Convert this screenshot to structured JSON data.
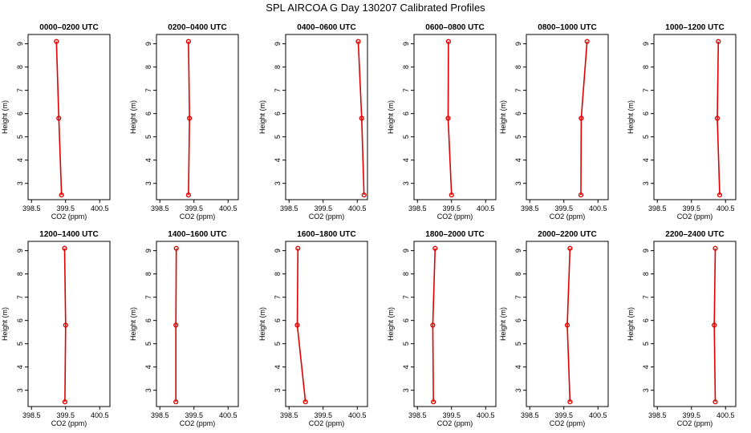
{
  "figure": {
    "title": "SPL AIRCOA G  Day 130207  Calibrated Profiles"
  },
  "colors": {
    "series": "#e00000"
  },
  "chart_data": [
    {
      "type": "line",
      "title": "0000–0200 UTC",
      "xlabel": "CO2 (ppm)",
      "ylabel": "Height (m)",
      "xlim": [
        398.4,
        400.8
      ],
      "ylim": [
        2.3,
        9.4
      ],
      "xticks": [
        398.5,
        399.5,
        400.5
      ],
      "yticks": [
        3,
        4,
        5,
        6,
        7,
        8,
        9
      ],
      "x": [
        399.38,
        399.3,
        399.23
      ],
      "y": [
        2.5,
        5.8,
        9.1
      ]
    },
    {
      "type": "line",
      "title": "0200–0400 UTC",
      "xlabel": "CO2 (ppm)",
      "ylabel": "Height (m)",
      "xlim": [
        398.4,
        400.8
      ],
      "ylim": [
        2.3,
        9.4
      ],
      "xticks": [
        398.5,
        399.5,
        400.5
      ],
      "yticks": [
        3,
        4,
        5,
        6,
        7,
        8,
        9
      ],
      "x": [
        399.34,
        399.37,
        399.34
      ],
      "y": [
        2.5,
        5.8,
        9.1
      ]
    },
    {
      "type": "line",
      "title": "0400–0600 UTC",
      "xlabel": "CO2 (ppm)",
      "ylabel": "Height (m)",
      "xlim": [
        398.4,
        400.8
      ],
      "ylim": [
        2.3,
        9.4
      ],
      "xticks": [
        398.5,
        399.5,
        400.5
      ],
      "yticks": [
        3,
        4,
        5,
        6,
        7,
        8,
        9
      ],
      "x": [
        400.7,
        400.63,
        400.53
      ],
      "y": [
        2.5,
        5.8,
        9.1
      ]
    },
    {
      "type": "line",
      "title": "0600–0800 UTC",
      "xlabel": "CO2 (ppm)",
      "ylabel": "Height (m)",
      "xlim": [
        398.4,
        400.8
      ],
      "ylim": [
        2.3,
        9.4
      ],
      "xticks": [
        398.5,
        399.5,
        400.5
      ],
      "yticks": [
        3,
        4,
        5,
        6,
        7,
        8,
        9
      ],
      "x": [
        399.5,
        399.4,
        399.41
      ],
      "y": [
        2.5,
        5.8,
        9.1
      ]
    },
    {
      "type": "line",
      "title": "0800–1000 UTC",
      "xlabel": "CO2 (ppm)",
      "ylabel": "Height (m)",
      "xlim": [
        398.4,
        400.8
      ],
      "ylim": [
        2.3,
        9.4
      ],
      "xticks": [
        398.5,
        399.5,
        400.5
      ],
      "yticks": [
        3,
        4,
        5,
        6,
        7,
        8,
        9
      ],
      "x": [
        400.0,
        400.01,
        400.18
      ],
      "y": [
        2.5,
        5.8,
        9.1
      ]
    },
    {
      "type": "line",
      "title": "1000–1200 UTC",
      "xlabel": "CO2 (ppm)",
      "ylabel": "Height (m)",
      "xlim": [
        398.4,
        400.8
      ],
      "ylim": [
        2.3,
        9.4
      ],
      "xticks": [
        398.5,
        399.5,
        400.5
      ],
      "yticks": [
        3,
        4,
        5,
        6,
        7,
        8,
        9
      ],
      "x": [
        400.33,
        400.26,
        400.29
      ],
      "y": [
        2.5,
        5.8,
        9.1
      ]
    },
    {
      "type": "line",
      "title": "1200–1400 UTC",
      "xlabel": "CO2 (ppm)",
      "ylabel": "Height (m)",
      "xlim": [
        398.4,
        400.8
      ],
      "ylim": [
        2.3,
        9.4
      ],
      "xticks": [
        398.5,
        399.5,
        400.5
      ],
      "yticks": [
        3,
        4,
        5,
        6,
        7,
        8,
        9
      ],
      "x": [
        399.48,
        399.5,
        399.47
      ],
      "y": [
        2.5,
        5.8,
        9.1
      ]
    },
    {
      "type": "line",
      "title": "1400–1600 UTC",
      "xlabel": "CO2 (ppm)",
      "ylabel": "Height (m)",
      "xlim": [
        398.4,
        400.8
      ],
      "ylim": [
        2.3,
        9.4
      ],
      "xticks": [
        398.5,
        399.5,
        400.5
      ],
      "yticks": [
        3,
        4,
        5,
        6,
        7,
        8,
        9
      ],
      "x": [
        398.97,
        398.97,
        398.98
      ],
      "y": [
        2.5,
        5.8,
        9.1
      ]
    },
    {
      "type": "line",
      "title": "1600–1800 UTC",
      "xlabel": "CO2 (ppm)",
      "ylabel": "Height (m)",
      "xlim": [
        398.4,
        400.8
      ],
      "ylim": [
        2.3,
        9.4
      ],
      "xticks": [
        398.5,
        399.5,
        400.5
      ],
      "yticks": [
        3,
        4,
        5,
        6,
        7,
        8,
        9
      ],
      "x": [
        398.98,
        398.74,
        398.76
      ],
      "y": [
        2.5,
        5.8,
        9.1
      ]
    },
    {
      "type": "line",
      "title": "1800–2000 UTC",
      "xlabel": "CO2 (ppm)",
      "ylabel": "Height (m)",
      "xlim": [
        398.4,
        400.8
      ],
      "ylim": [
        2.3,
        9.4
      ],
      "xticks": [
        398.5,
        399.5,
        400.5
      ],
      "yticks": [
        3,
        4,
        5,
        6,
        7,
        8,
        9
      ],
      "x": [
        398.97,
        398.95,
        399.02
      ],
      "y": [
        2.5,
        5.8,
        9.1
      ]
    },
    {
      "type": "line",
      "title": "2000–2200 UTC",
      "xlabel": "CO2 (ppm)",
      "ylabel": "Height (m)",
      "xlim": [
        398.4,
        400.8
      ],
      "ylim": [
        2.3,
        9.4
      ],
      "xticks": [
        398.5,
        399.5,
        400.5
      ],
      "yticks": [
        3,
        4,
        5,
        6,
        7,
        8,
        9
      ],
      "x": [
        399.68,
        399.6,
        399.68
      ],
      "y": [
        2.5,
        5.8,
        9.1
      ]
    },
    {
      "type": "line",
      "title": "2200–2400 UTC",
      "xlabel": "CO2 (ppm)",
      "ylabel": "Height (m)",
      "xlim": [
        398.4,
        400.8
      ],
      "ylim": [
        2.3,
        9.4
      ],
      "xticks": [
        398.5,
        399.5,
        400.5
      ],
      "yticks": [
        3,
        4,
        5,
        6,
        7,
        8,
        9
      ],
      "x": [
        400.2,
        400.17,
        400.2
      ],
      "y": [
        2.5,
        5.8,
        9.1
      ]
    }
  ]
}
